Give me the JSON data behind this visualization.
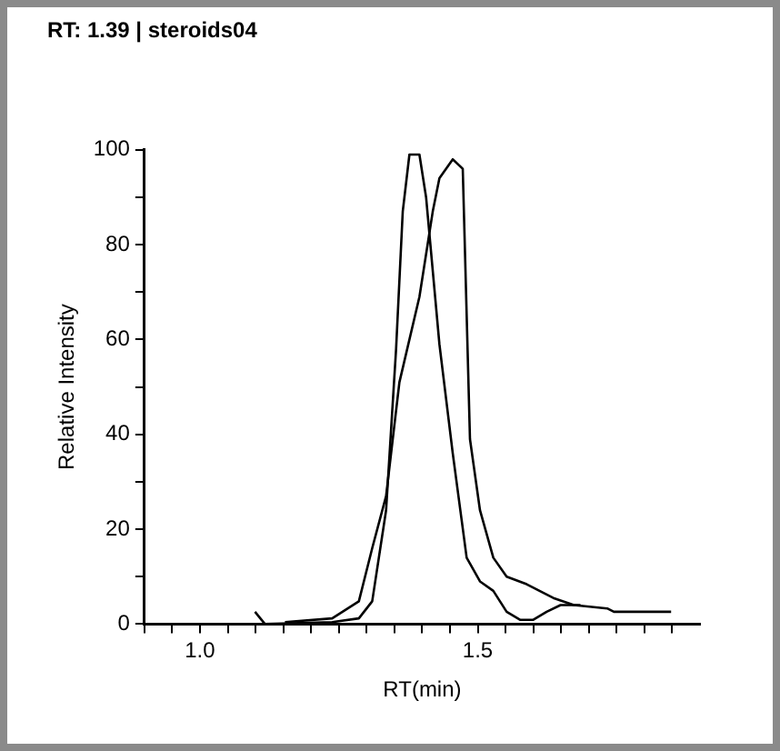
{
  "chart_data": {
    "type": "line",
    "title": "RT: 1.39 | steroids04",
    "xlabel": "RT(min)",
    "ylabel": "Relative Intensity",
    "grid": false,
    "legend": false,
    "marker": "none",
    "line_style": "solid",
    "xlim": [
      0.9,
      1.9
    ],
    "ylim": [
      0,
      100
    ],
    "xticks": [
      {
        "value": 0.9,
        "label": null
      },
      {
        "value": 0.95,
        "label": null
      },
      {
        "value": 1.0,
        "label": "1.0"
      },
      {
        "value": 1.05,
        "label": null
      },
      {
        "value": 1.1,
        "label": null
      },
      {
        "value": 1.15,
        "label": null
      },
      {
        "value": 1.2,
        "label": null
      },
      {
        "value": 1.25,
        "label": null
      },
      {
        "value": 1.3,
        "label": null
      },
      {
        "value": 1.35,
        "label": null
      },
      {
        "value": 1.4,
        "label": null
      },
      {
        "value": 1.45,
        "label": null
      },
      {
        "value": 1.5,
        "label": "1.5"
      },
      {
        "value": 1.55,
        "label": null
      },
      {
        "value": 1.6,
        "label": null
      },
      {
        "value": 1.65,
        "label": null
      },
      {
        "value": 1.7,
        "label": null
      },
      {
        "value": 1.75,
        "label": null
      },
      {
        "value": 1.8,
        "label": null
      },
      {
        "value": 1.85,
        "label": null
      }
    ],
    "yticks": [
      0,
      {
        "value": 10,
        "label": null
      },
      20,
      {
        "value": 30,
        "label": null
      },
      40,
      {
        "value": 50,
        "label": null
      },
      60,
      {
        "value": 70,
        "label": null
      },
      80,
      {
        "value": 90,
        "label": null
      },
      100
    ],
    "series": [
      {
        "color": "#000000",
        "x": [
          1.099,
          1.117,
          1.238,
          1.286,
          1.31,
          1.335,
          1.353,
          1.365,
          1.377,
          1.395,
          1.407,
          1.431,
          1.455,
          1.48,
          1.504,
          1.528,
          1.552,
          1.576,
          1.6,
          1.624,
          1.649,
          1.685
        ],
        "values": [
          2.6,
          0,
          0.4,
          1.2,
          4.8,
          24,
          58,
          87,
          99,
          99,
          90,
          59,
          36,
          14,
          9,
          7,
          2.6,
          0.9,
          0.9,
          2.6,
          4,
          4
        ]
      },
      {
        "color": "#000000",
        "x": [
          1.153,
          1.238,
          1.286,
          1.31,
          1.335,
          1.359,
          1.395,
          1.419,
          1.431,
          1.455,
          1.473,
          1.486,
          1.504,
          1.528,
          1.552,
          1.588,
          1.636,
          1.673,
          1.733,
          1.745,
          1.848
        ],
        "values": [
          0.4,
          1.2,
          4.8,
          16,
          27,
          51,
          69,
          87,
          94,
          98,
          96,
          39,
          24,
          14,
          10,
          8.4,
          5.5,
          4,
          3.3,
          2.6,
          2.6
        ]
      }
    ]
  }
}
